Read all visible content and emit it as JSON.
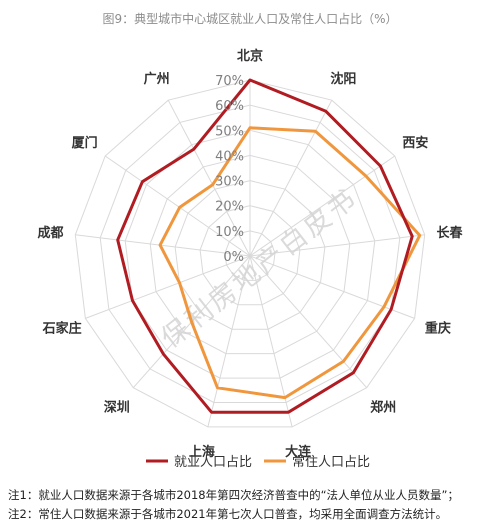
{
  "title": "图9：典型城市中心城区就业人口及常住人口占比（%）",
  "watermark": "保利房地产白皮书",
  "notes": [
    "注1：就业人口数据来源于各城市2018年第四次经济普查中的“法人单位从业人员数量”；",
    "注2：常住人口数据来源于各城市2021年第七次人口普查，均采用全面调查方法统计。"
  ],
  "chart_data": {
    "type": "radar",
    "title": "图9：典型城市中心城区就业人口及常住人口占比（%）",
    "categories": [
      "北京",
      "沈阳",
      "西安",
      "长春",
      "重庆",
      "郑州",
      "大连",
      "上海",
      "深圳",
      "石家庄",
      "成都",
      "厦门",
      "广州"
    ],
    "ticks": [
      "0%",
      "10%",
      "20%",
      "30%",
      "40%",
      "50%",
      "60%",
      "70%"
    ],
    "rlim": [
      0,
      70
    ],
    "grid": true,
    "legend_position": "bottom",
    "series": [
      {
        "name": "就业人口占比",
        "color": "#b01c22",
        "values": [
          70,
          65,
          63,
          65,
          60,
          62,
          64,
          64,
          52,
          50,
          53,
          52,
          48
        ]
      },
      {
        "name": "常住人口占比",
        "color": "#f0963c",
        "values": [
          51,
          56,
          56,
          68,
          57,
          56,
          58,
          54,
          35,
          30,
          36,
          34,
          32
        ]
      }
    ]
  }
}
